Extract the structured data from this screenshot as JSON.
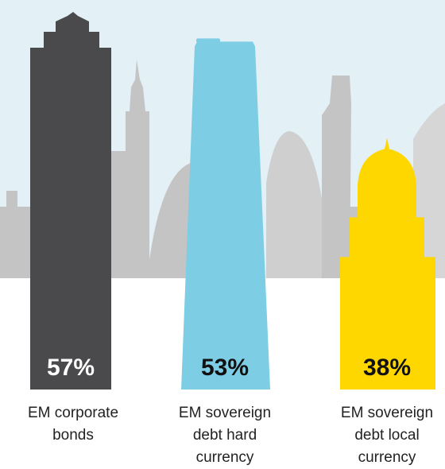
{
  "chart_data": {
    "type": "bar",
    "categories": [
      "EM corporate bonds",
      "EM sovereign debt hard currency",
      "EM sovereign debt local currency"
    ],
    "values": [
      57,
      53,
      38
    ],
    "value_labels": [
      "57%",
      "53%",
      "38%"
    ],
    "colors": [
      "#4a4a4c",
      "#7dcde4",
      "#ffd700"
    ]
  }
}
